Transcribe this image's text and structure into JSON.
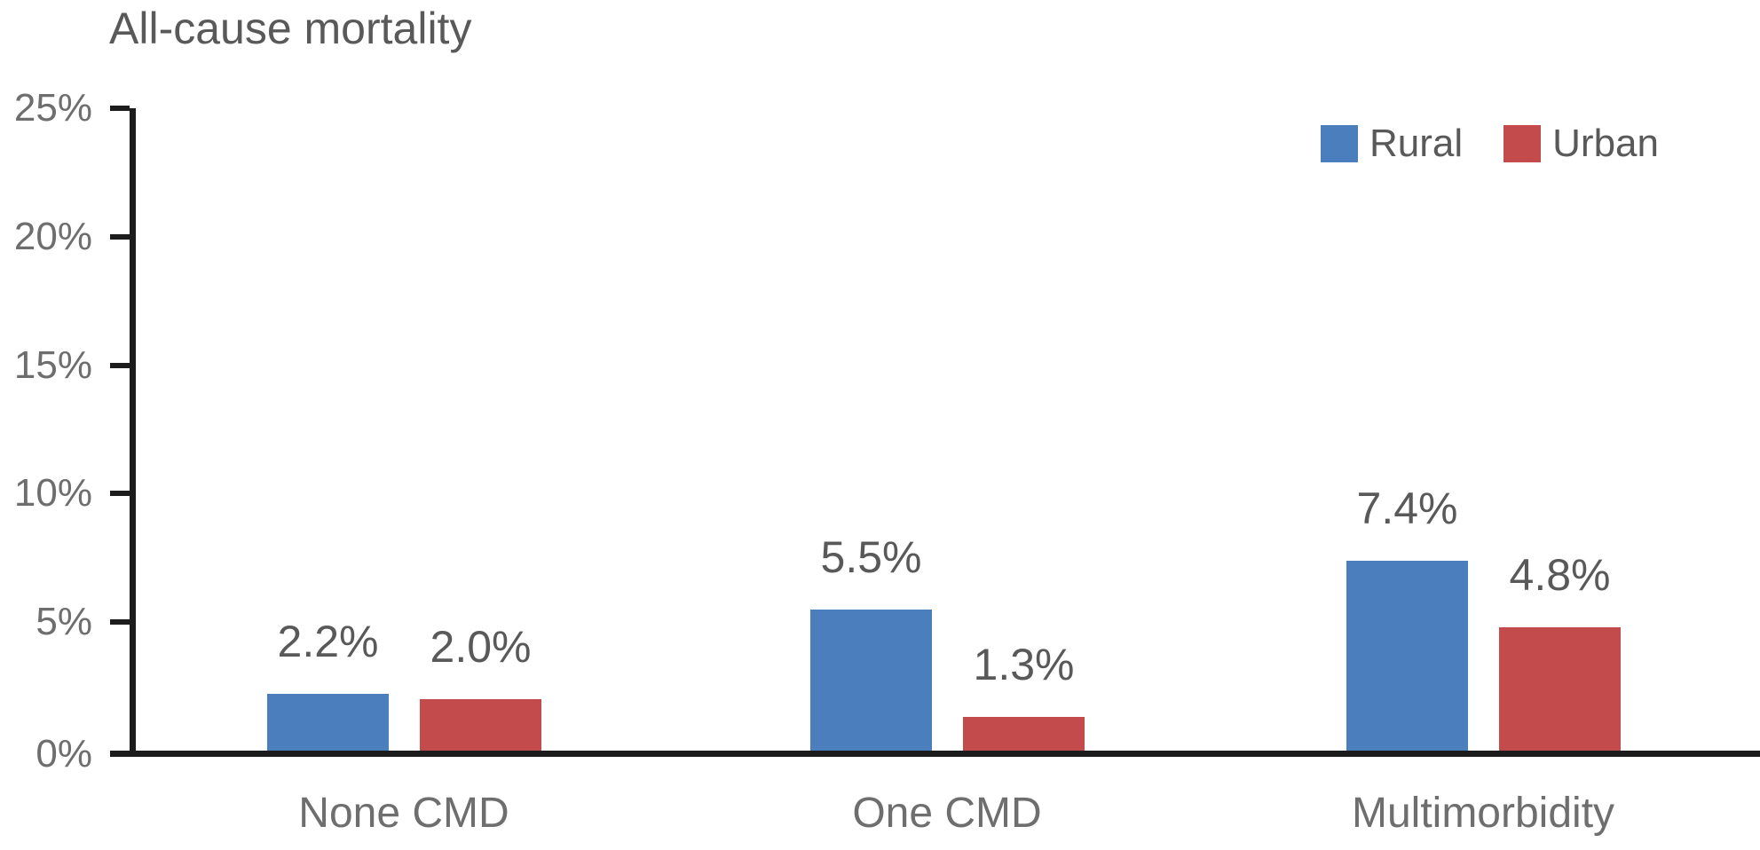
{
  "chart_data": {
    "type": "bar",
    "title": "All-cause mortality",
    "categories": [
      "None CMD",
      "One CMD",
      "Multimorbidity"
    ],
    "series": [
      {
        "name": "Rural",
        "color": "#4A7EBD",
        "values": [
          2.2,
          5.5,
          7.4
        ],
        "data_labels": [
          "2.2%",
          "5.5%",
          "7.4%"
        ]
      },
      {
        "name": "Urban",
        "color": "#C34B4C",
        "values": [
          2.0,
          1.3,
          4.8
        ],
        "data_labels": [
          "2.0%",
          "1.3%",
          "4.8%"
        ]
      }
    ],
    "xlabel": "",
    "ylabel": "",
    "ylim": [
      0,
      25
    ],
    "yticks": [
      0,
      5,
      10,
      15,
      20,
      25
    ],
    "ytick_labels": [
      "0%",
      "5%",
      "10%",
      "15%",
      "20%",
      "25%"
    ],
    "grid": false,
    "legend_position": "top-right",
    "colors": {
      "rural_bar": "#4A7EBD",
      "urban_bar": "#C34B4C",
      "axis": "#1c1c1c",
      "title_text": "#595959",
      "data_label_text": "#595959",
      "tick_text": "#6e6e6e"
    }
  }
}
